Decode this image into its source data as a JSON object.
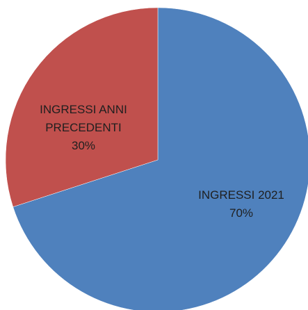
{
  "chart_data": {
    "type": "pie",
    "title": "",
    "slices": [
      {
        "label_lines": [
          "INGRESSI 2021"
        ],
        "value": 70,
        "percent_label": "70%",
        "color": "#4f81bd"
      },
      {
        "label_lines": [
          "INGRESSI ANNI",
          "PRECEDENTI"
        ],
        "value": 30,
        "percent_label": "30%",
        "color": "#c0504d"
      }
    ],
    "start_angle_deg": 0,
    "direction": "clockwise",
    "legend": "none",
    "data_labels": "inside"
  }
}
